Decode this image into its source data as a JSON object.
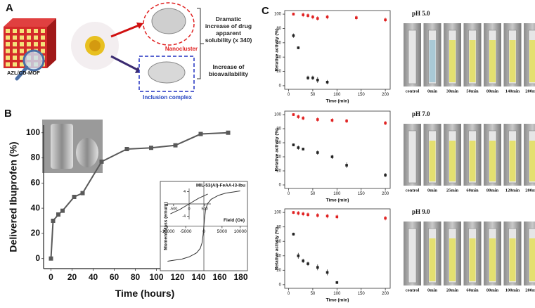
{
  "panels": {
    "a": "A",
    "b": "B",
    "c": "C"
  },
  "diagram": {
    "mof": "AZL/CD-MOF",
    "nanocluster": "Nanocluster",
    "inclusion": "Inclusion complex",
    "solubility": "Dramatic increase of drug apparent solubility (x 340)",
    "bioavailability": "Increase of bioavailability"
  },
  "chart_data": [
    {
      "type": "line",
      "markers": true,
      "xlabel": "Time (hours)",
      "ylabel": "Delivered Ibuprofen (%)",
      "xlim": [
        -7,
        185
      ],
      "ylim": [
        -8,
        106
      ],
      "xticks": [
        0,
        20,
        40,
        60,
        80,
        100,
        120,
        140,
        160,
        180
      ],
      "yticks": [
        0,
        20,
        40,
        60,
        80,
        100
      ],
      "series": [
        {
          "color": "#595959",
          "x": [
            0,
            2,
            7,
            11,
            22,
            30,
            48,
            72,
            95,
            118,
            142,
            168
          ],
          "values": [
            0,
            30,
            35,
            38,
            49,
            52,
            77,
            87,
            88,
            90,
            99,
            100
          ]
        }
      ]
    },
    {
      "type": "line",
      "title": "MIL-53(Al)-FeAA-I3-Ibu",
      "xlabel": "Field (Oe)",
      "ylabel": "Moment/Mass (emu/g)",
      "xlim": [
        -12000,
        12000
      ],
      "ylim": [
        -8,
        8
      ],
      "xticks": [
        -10000,
        -5000,
        0,
        5000,
        10000
      ],
      "zero_lines": true,
      "series": [
        {
          "color": "#333333",
          "x": [
            -10000,
            -8000,
            -6000,
            -4000,
            -2000,
            -1000,
            -500,
            -200,
            0,
            200,
            500,
            1000,
            2000,
            4000,
            6000,
            8000,
            10000
          ],
          "values": [
            -6.3,
            -6.1,
            -5.9,
            -5.5,
            -4.8,
            -4,
            -3,
            -1.5,
            0,
            1.5,
            3,
            4,
            4.8,
            5.5,
            5.9,
            6.1,
            6.3
          ]
        }
      ]
    },
    {
      "type": "line",
      "xlim": [
        -700,
        700
      ],
      "ylim": [
        -5,
        5
      ],
      "xticks": [
        -500,
        0,
        500
      ],
      "yticks": [
        -4,
        4
      ],
      "zero_lines": true,
      "series": [
        {
          "color": "#333333",
          "x": [
            -600,
            -300,
            0,
            300,
            600
          ],
          "values": [
            -3.2,
            -1.8,
            0,
            1.8,
            3.2
          ]
        }
      ]
    },
    {
      "type": "scatter",
      "title": "pH 5.0",
      "xlabel": "Time (min)",
      "ylabel": "Relative activity (%)",
      "xlim": [
        -8,
        210
      ],
      "ylim": [
        -5,
        105
      ],
      "xticks": [
        0,
        50,
        100,
        150,
        200
      ],
      "yticks": [
        0,
        20,
        40,
        60,
        80,
        100
      ],
      "series": [
        {
          "color": "#e02020",
          "x": [
            10,
            30,
            40,
            50,
            60,
            80,
            140,
            200
          ],
          "values": [
            100,
            99,
            98,
            96,
            94,
            96,
            95,
            92
          ],
          "errors": [
            2,
            3,
            3,
            3,
            3,
            3,
            3,
            3
          ]
        },
        {
          "color": "#222222",
          "x": [
            10,
            20,
            40,
            50,
            60,
            80
          ],
          "values": [
            70,
            53,
            11,
            11,
            8,
            5
          ],
          "errors": [
            3,
            2,
            3,
            3,
            4,
            3
          ]
        }
      ]
    },
    {
      "type": "scatter",
      "title": "pH 7.0",
      "xlabel": "Time (min)",
      "ylabel": "Relative activity (%)",
      "xlim": [
        -8,
        210
      ],
      "ylim": [
        -5,
        105
      ],
      "xticks": [
        0,
        50,
        100,
        150,
        200
      ],
      "yticks": [
        0,
        20,
        40,
        60,
        80,
        100
      ],
      "series": [
        {
          "color": "#e02020",
          "x": [
            10,
            20,
            30,
            60,
            90,
            120,
            200
          ],
          "values": [
            100,
            97,
            95,
            93,
            92,
            91,
            88
          ],
          "errors": [
            2,
            3,
            3,
            3,
            3,
            3,
            3
          ]
        },
        {
          "color": "#222222",
          "x": [
            10,
            20,
            30,
            60,
            90,
            120,
            200
          ],
          "values": [
            57,
            53,
            51,
            46,
            40,
            28,
            14
          ],
          "errors": [
            2,
            3,
            2,
            3,
            3,
            4,
            3
          ]
        }
      ]
    },
    {
      "type": "scatter",
      "title": "pH 9.0",
      "xlabel": "Time (min)",
      "ylabel": "Relative activity (%)",
      "xlim": [
        -8,
        210
      ],
      "ylim": [
        -5,
        105
      ],
      "xticks": [
        0,
        50,
        100,
        150,
        200
      ],
      "yticks": [
        0,
        20,
        40,
        60,
        80,
        100
      ],
      "series": [
        {
          "color": "#e02020",
          "x": [
            10,
            20,
            30,
            40,
            60,
            80,
            100,
            200
          ],
          "values": [
            100,
            99,
            98,
            97,
            96,
            95,
            94,
            92
          ],
          "errors": [
            2,
            3,
            3,
            3,
            3,
            3,
            3,
            3
          ]
        },
        {
          "color": "#222222",
          "x": [
            10,
            20,
            30,
            40,
            60,
            80,
            100
          ],
          "values": [
            70,
            40,
            33,
            29,
            24,
            17,
            3
          ],
          "errors": [
            2,
            4,
            3,
            3,
            4,
            4,
            2
          ]
        }
      ]
    }
  ],
  "photos": [
    [
      "control",
      "0min",
      "30min",
      "50min",
      "80min",
      "140min",
      "200min"
    ],
    [
      "control",
      "0min",
      "25min",
      "60min",
      "80min",
      "120min",
      "200min"
    ],
    [
      "control",
      "0min",
      "20min",
      "60min",
      "80min",
      "100min",
      "200min"
    ]
  ]
}
